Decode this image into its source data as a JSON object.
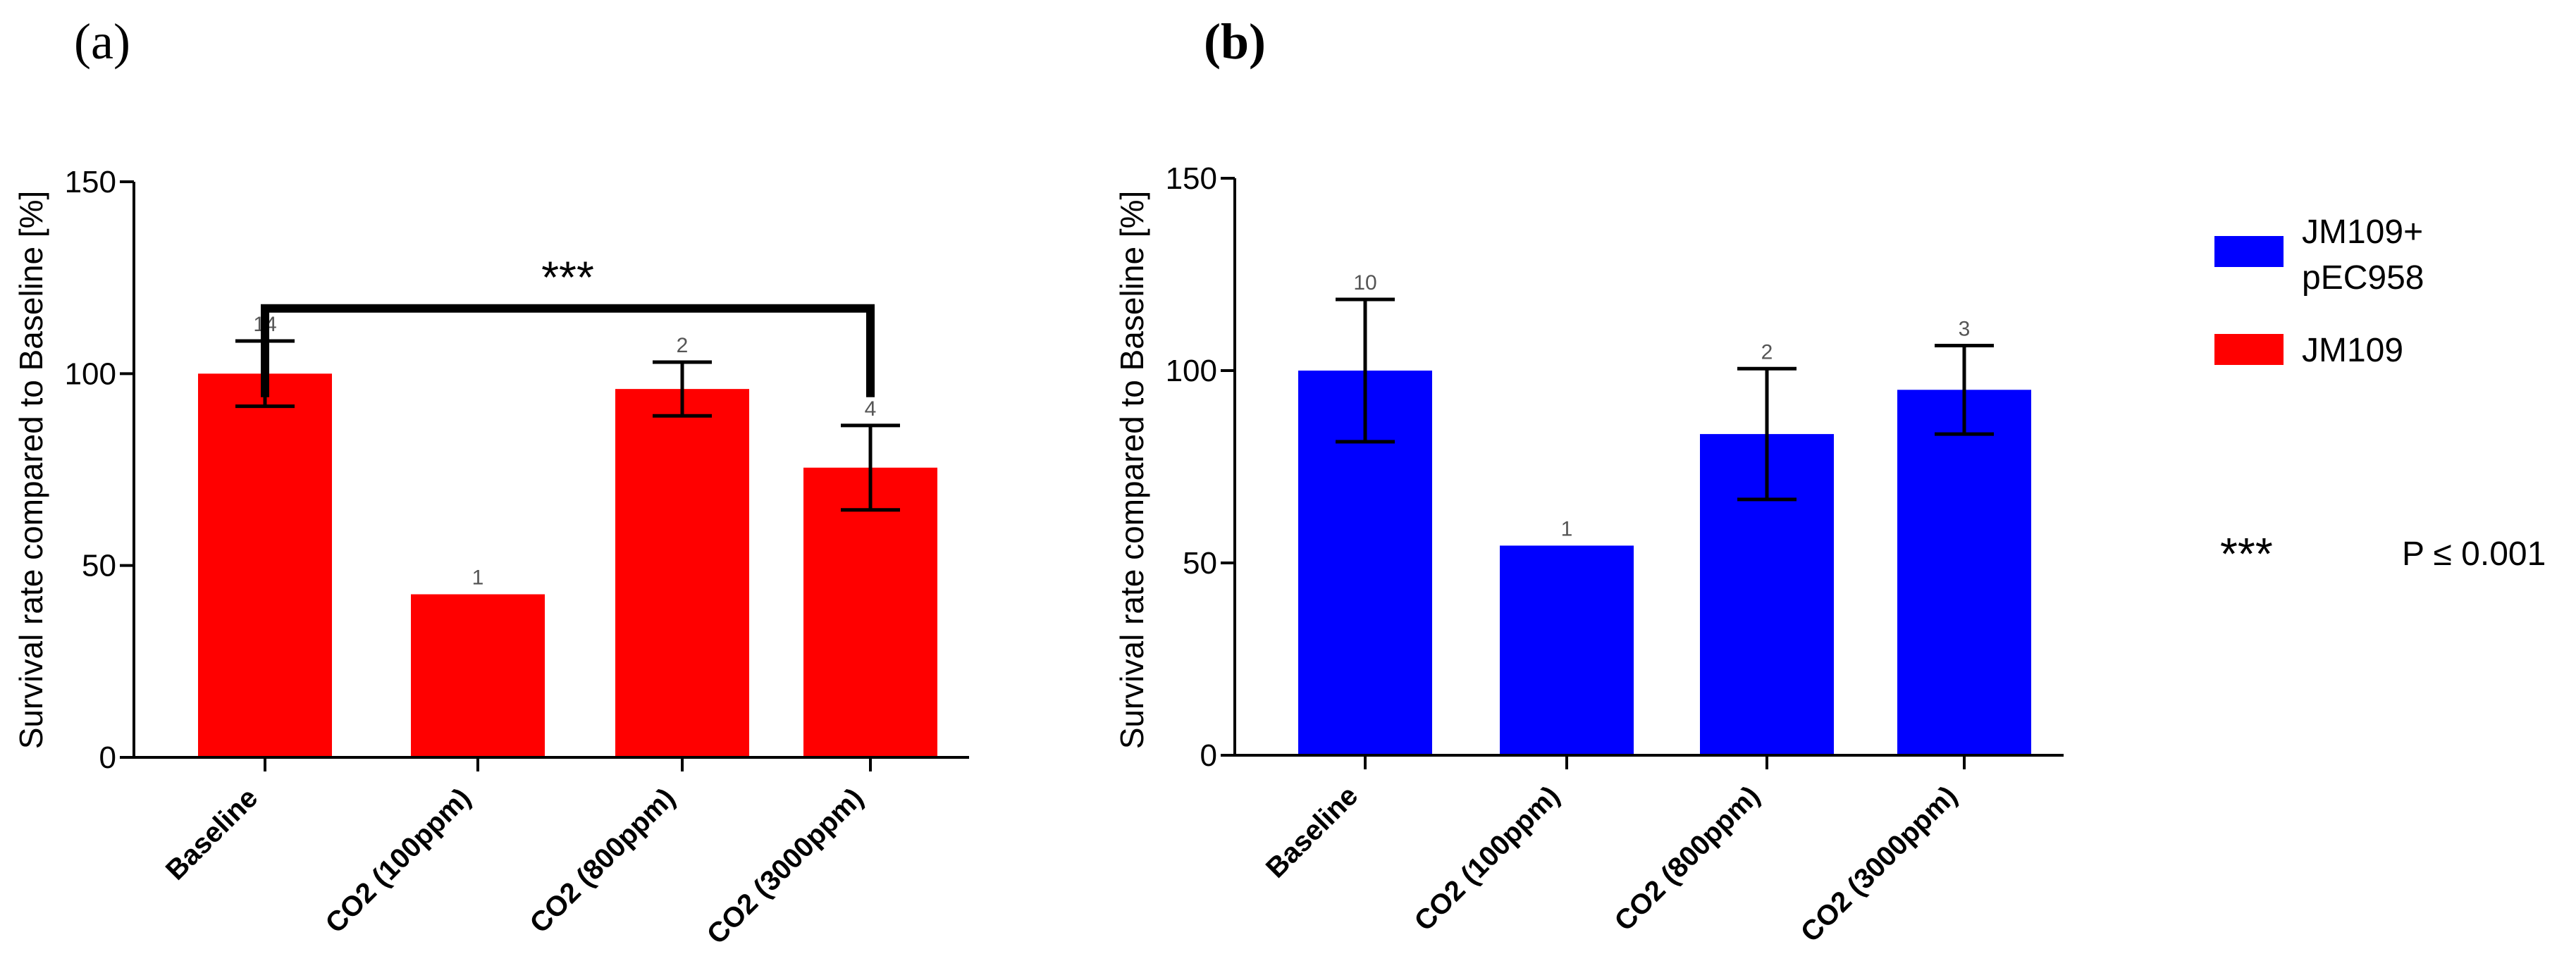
{
  "chart_data": [
    {
      "type": "bar",
      "panel": "(a)",
      "title": "",
      "xlabel": "",
      "ylabel": "Survival rate compared to Baseline [%]",
      "ylim": [
        0,
        150
      ],
      "yticks": [
        "0",
        "50",
        "100",
        "150"
      ],
      "categories": [
        "Baseline",
        "CO2 (100ppm)",
        "CO2 (800ppm)",
        "CO2 (3000ppm)"
      ],
      "series": [
        {
          "name": "JM109",
          "color": "#ff0000",
          "values": [
            100,
            42.5,
            96,
            75.5
          ],
          "error": [
            8.5,
            0,
            7,
            11
          ],
          "n_labels": [
            "14",
            "1",
            "2",
            "4"
          ]
        }
      ],
      "significance": {
        "label": "***",
        "from": "Baseline",
        "to": "CO2 (3000ppm)",
        "y": 117
      }
    },
    {
      "type": "bar",
      "panel": "(b)",
      "title": "",
      "xlabel": "",
      "ylabel": "Survival rate compared to Baseline [%]",
      "ylim": [
        0,
        150
      ],
      "yticks": [
        "0",
        "50",
        "100",
        "150"
      ],
      "categories": [
        "Baseline",
        "CO2 (100ppm)",
        "CO2 (800ppm)",
        "CO2 (3000ppm)"
      ],
      "series": [
        {
          "name": "JM109+ pEC958",
          "color": "#0000ff",
          "values": [
            100,
            54.5,
            83.5,
            95
          ],
          "error": [
            18.5,
            0,
            17,
            11.5
          ],
          "n_labels": [
            "10",
            "1",
            "2",
            "3"
          ]
        }
      ]
    }
  ],
  "legend": {
    "items": [
      {
        "label_lines": [
          "JM109+",
          "pEC958"
        ],
        "color": "#0000ff"
      },
      {
        "label_lines": [
          "JM109"
        ],
        "color": "#ff0000"
      }
    ],
    "note": {
      "symbol": "***",
      "text": "P ≤ 0.001"
    }
  }
}
